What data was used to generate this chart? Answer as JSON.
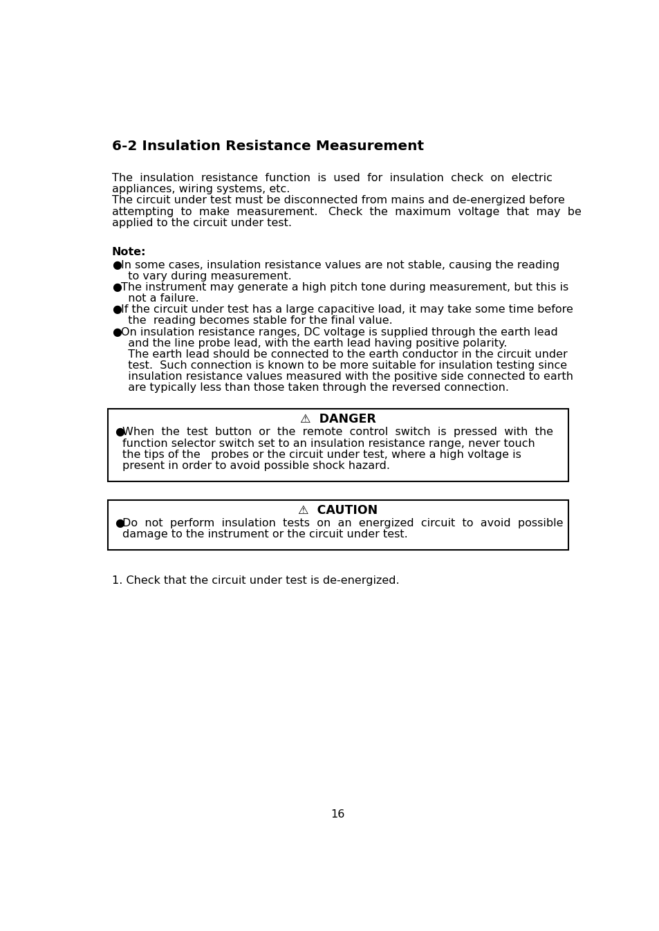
{
  "bg_color": "#ffffff",
  "text_color": "#000000",
  "title": "6-2 Insulation Resistance Measurement",
  "intro_para1_line1": "The  insulation  resistance  function  is  used  for  insulation  check  on  electric",
  "intro_para1_line2": "appliances, wiring systems, etc.",
  "intro_para2_line1": "The circuit under test must be disconnected from mains and de-energized before",
  "intro_para2_line2": "attempting  to  make  measurement.   Check  the  maximum  voltage  that  may  be",
  "intro_para2_line3": "applied to the circuit under test.",
  "note_label": "Note:",
  "bullet1_line1": "In some cases, insulation resistance values are not stable, causing the reading",
  "bullet1_line2": "  to vary during measurement.",
  "bullet2_line1": "The instrument may generate a high pitch tone during measurement, but this is",
  "bullet2_line2": "  not a failure.",
  "bullet3_line1": "If the circuit under test has a large capacitive load, it may take some time before",
  "bullet3_line2": "  the  reading becomes stable for the final value.",
  "bullet4_line1": "On insulation resistance ranges, DC voltage is supplied through the earth lead",
  "bullet4_line2": "  and the line probe lead, with the earth lead having positive polarity.",
  "bullet4_extra1": "  The earth lead should be connected to the earth conductor in the circuit under",
  "bullet4_extra2": "  test.  Such connection is known to be more suitable for insulation testing since",
  "bullet4_extra3": "  insulation resistance values measured with the positive side connected to earth",
  "bullet4_extra4": "  are typically less than those taken through the reversed connection.",
  "danger_title": "⚠  DANGER",
  "danger_bullet_line1": "When  the  test  button  or  the  remote  control  switch  is  pressed  with  the",
  "danger_bullet_line2": "function selector switch set to an insulation resistance range, never touch",
  "danger_bullet_line3": "the tips of the   probes or the circuit under test, where a high voltage is",
  "danger_bullet_line4": "present in order to avoid possible shock hazard.",
  "caution_title": "⚠  CAUTION",
  "caution_bullet_line1": "Do  not  perform  insulation  tests  on  an  energized  circuit  to  avoid  possible",
  "caution_bullet_line2": "damage to the instrument or the circuit under test.",
  "step1": "1. Check that the circuit under test is de-energized.",
  "page_number": "16"
}
